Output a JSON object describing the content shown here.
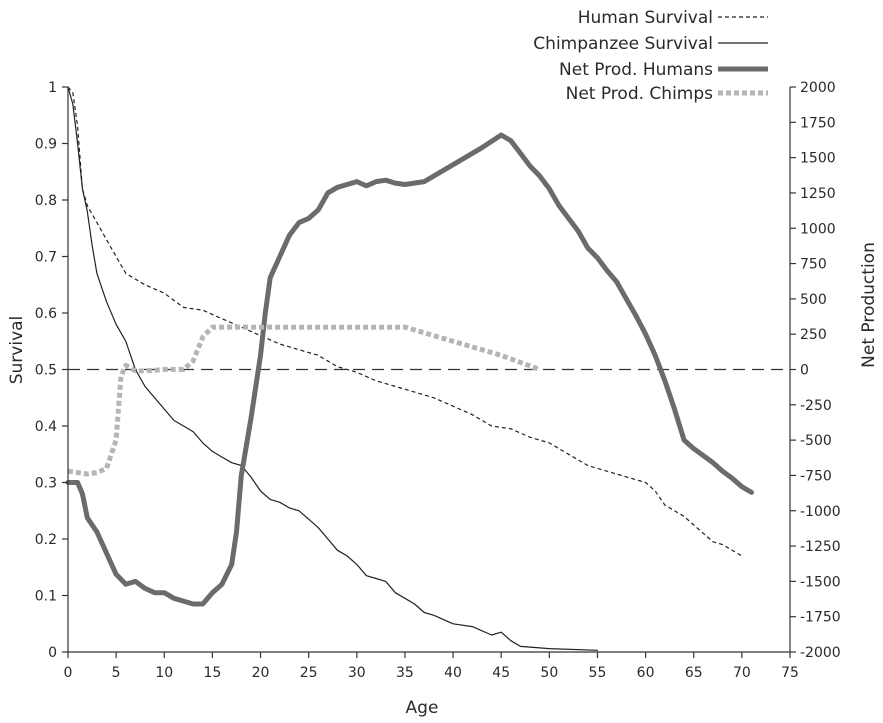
{
  "chart_data": {
    "type": "line",
    "xlabel": "Age",
    "ylabel_left": "Survival",
    "ylabel_right": "Net Production",
    "x_ticks": [
      0,
      5,
      10,
      15,
      20,
      25,
      30,
      35,
      40,
      45,
      50,
      55,
      60,
      65,
      70,
      75
    ],
    "xlim": [
      0,
      75
    ],
    "y_left_ticks": [
      "0",
      "0.1",
      "0.2",
      "0.3",
      "0.4",
      "0.5",
      "0.6",
      "0.7",
      "0.8",
      "0.9",
      "1"
    ],
    "ylim_left": [
      0,
      1
    ],
    "y_right_ticks": [
      -2000,
      -1750,
      -1500,
      -1250,
      -1000,
      -750,
      -500,
      -250,
      0,
      250,
      500,
      750,
      1000,
      1250,
      1500,
      1750,
      2000
    ],
    "ylim_right": [
      -2000,
      2000
    ],
    "reference_line": {
      "axis": "right",
      "value": 0,
      "style": "dashed"
    },
    "legend_position": "top-right",
    "series": [
      {
        "name": "Human Survival",
        "axis": "left",
        "style": "thin-dashed",
        "color": "#222222",
        "points": [
          [
            0,
            1.0
          ],
          [
            0.5,
            0.99
          ],
          [
            1,
            0.93
          ],
          [
            1.5,
            0.82
          ],
          [
            2,
            0.79
          ],
          [
            3,
            0.76
          ],
          [
            4,
            0.73
          ],
          [
            5,
            0.7
          ],
          [
            6,
            0.67
          ],
          [
            8,
            0.65
          ],
          [
            10,
            0.635
          ],
          [
            12,
            0.61
          ],
          [
            14,
            0.605
          ],
          [
            16,
            0.59
          ],
          [
            18,
            0.575
          ],
          [
            20,
            0.56
          ],
          [
            22,
            0.545
          ],
          [
            24,
            0.535
          ],
          [
            26,
            0.525
          ],
          [
            28,
            0.505
          ],
          [
            30,
            0.495
          ],
          [
            32,
            0.48
          ],
          [
            34,
            0.47
          ],
          [
            36,
            0.46
          ],
          [
            38,
            0.45
          ],
          [
            40,
            0.435
          ],
          [
            42,
            0.42
          ],
          [
            44,
            0.4
          ],
          [
            46,
            0.395
          ],
          [
            48,
            0.38
          ],
          [
            50,
            0.37
          ],
          [
            52,
            0.35
          ],
          [
            54,
            0.33
          ],
          [
            56,
            0.32
          ],
          [
            58,
            0.31
          ],
          [
            60,
            0.3
          ],
          [
            61,
            0.285
          ],
          [
            62,
            0.26
          ],
          [
            64,
            0.24
          ],
          [
            66,
            0.21
          ],
          [
            67,
            0.195
          ],
          [
            68,
            0.19
          ],
          [
            70,
            0.17
          ]
        ]
      },
      {
        "name": "Chimpanzee Survival",
        "axis": "left",
        "style": "thin-solid",
        "color": "#222222",
        "points": [
          [
            0,
            1.0
          ],
          [
            0.5,
            0.97
          ],
          [
            1,
            0.9
          ],
          [
            1.5,
            0.82
          ],
          [
            2,
            0.78
          ],
          [
            2.5,
            0.72
          ],
          [
            3,
            0.67
          ],
          [
            4,
            0.62
          ],
          [
            5,
            0.58
          ],
          [
            6,
            0.55
          ],
          [
            7,
            0.5
          ],
          [
            8,
            0.47
          ],
          [
            9,
            0.45
          ],
          [
            10,
            0.43
          ],
          [
            11,
            0.41
          ],
          [
            12,
            0.4
          ],
          [
            13,
            0.39
          ],
          [
            14,
            0.37
          ],
          [
            15,
            0.355
          ],
          [
            16,
            0.345
          ],
          [
            17,
            0.335
          ],
          [
            18,
            0.33
          ],
          [
            19,
            0.31
          ],
          [
            20,
            0.285
          ],
          [
            21,
            0.27
          ],
          [
            22,
            0.265
          ],
          [
            23,
            0.255
          ],
          [
            24,
            0.25
          ],
          [
            25,
            0.235
          ],
          [
            26,
            0.22
          ],
          [
            27,
            0.2
          ],
          [
            28,
            0.18
          ],
          [
            29,
            0.17
          ],
          [
            30,
            0.155
          ],
          [
            31,
            0.135
          ],
          [
            32,
            0.13
          ],
          [
            33,
            0.125
          ],
          [
            34,
            0.105
          ],
          [
            35,
            0.095
          ],
          [
            36,
            0.085
          ],
          [
            37,
            0.07
          ],
          [
            38,
            0.065
          ],
          [
            40,
            0.05
          ],
          [
            42,
            0.045
          ],
          [
            44,
            0.03
          ],
          [
            45,
            0.035
          ],
          [
            46,
            0.02
          ],
          [
            47,
            0.01
          ],
          [
            50,
            0.006
          ],
          [
            55,
            0.003
          ]
        ]
      },
      {
        "name": "Net Prod. Humans",
        "axis": "right",
        "style": "thick-solid",
        "color": "#6b6b6b",
        "points": [
          [
            0,
            -800
          ],
          [
            1,
            -800
          ],
          [
            1.5,
            -880
          ],
          [
            2,
            -1050
          ],
          [
            3,
            -1150
          ],
          [
            4,
            -1300
          ],
          [
            5,
            -1450
          ],
          [
            6,
            -1520
          ],
          [
            7,
            -1500
          ],
          [
            8,
            -1550
          ],
          [
            9,
            -1580
          ],
          [
            10,
            -1580
          ],
          [
            11,
            -1620
          ],
          [
            12,
            -1640
          ],
          [
            13,
            -1660
          ],
          [
            14,
            -1660
          ],
          [
            15,
            -1580
          ],
          [
            16,
            -1520
          ],
          [
            17,
            -1380
          ],
          [
            17.5,
            -1150
          ],
          [
            18,
            -750
          ],
          [
            19,
            -350
          ],
          [
            20,
            100
          ],
          [
            20.5,
            400
          ],
          [
            21,
            650
          ],
          [
            22,
            800
          ],
          [
            23,
            950
          ],
          [
            24,
            1040
          ],
          [
            25,
            1070
          ],
          [
            26,
            1130
          ],
          [
            27,
            1250
          ],
          [
            28,
            1290
          ],
          [
            29,
            1310
          ],
          [
            30,
            1330
          ],
          [
            31,
            1300
          ],
          [
            32,
            1330
          ],
          [
            33,
            1340
          ],
          [
            34,
            1320
          ],
          [
            35,
            1310
          ],
          [
            37,
            1330
          ],
          [
            40,
            1450
          ],
          [
            43,
            1570
          ],
          [
            45,
            1660
          ],
          [
            46,
            1620
          ],
          [
            47,
            1530
          ],
          [
            48,
            1440
          ],
          [
            49,
            1370
          ],
          [
            50,
            1280
          ],
          [
            51,
            1160
          ],
          [
            52,
            1070
          ],
          [
            53,
            980
          ],
          [
            54,
            860
          ],
          [
            55,
            790
          ],
          [
            56,
            700
          ],
          [
            57,
            620
          ],
          [
            58,
            500
          ],
          [
            59,
            380
          ],
          [
            60,
            250
          ],
          [
            61,
            100
          ],
          [
            62,
            -80
          ],
          [
            63,
            -280
          ],
          [
            64,
            -500
          ],
          [
            65,
            -560
          ],
          [
            66,
            -610
          ],
          [
            67,
            -660
          ],
          [
            68,
            -720
          ],
          [
            69,
            -770
          ],
          [
            70,
            -830
          ],
          [
            71,
            -870
          ]
        ]
      },
      {
        "name": "Net Prod. Chimps",
        "axis": "right",
        "style": "thick-dotted",
        "color": "#b5b5b5",
        "points": [
          [
            0,
            -720
          ],
          [
            2,
            -740
          ],
          [
            3,
            -730
          ],
          [
            4,
            -700
          ],
          [
            5,
            -500
          ],
          [
            5.5,
            -50
          ],
          [
            6,
            30
          ],
          [
            7,
            -10
          ],
          [
            8,
            -10
          ],
          [
            10,
            0
          ],
          [
            12,
            0
          ],
          [
            13,
            60
          ],
          [
            14,
            230
          ],
          [
            15,
            300
          ],
          [
            20,
            300
          ],
          [
            25,
            300
          ],
          [
            30,
            300
          ],
          [
            35,
            300
          ],
          [
            40,
            200
          ],
          [
            45,
            100
          ],
          [
            47,
            50
          ],
          [
            49,
            0
          ]
        ]
      }
    ]
  }
}
